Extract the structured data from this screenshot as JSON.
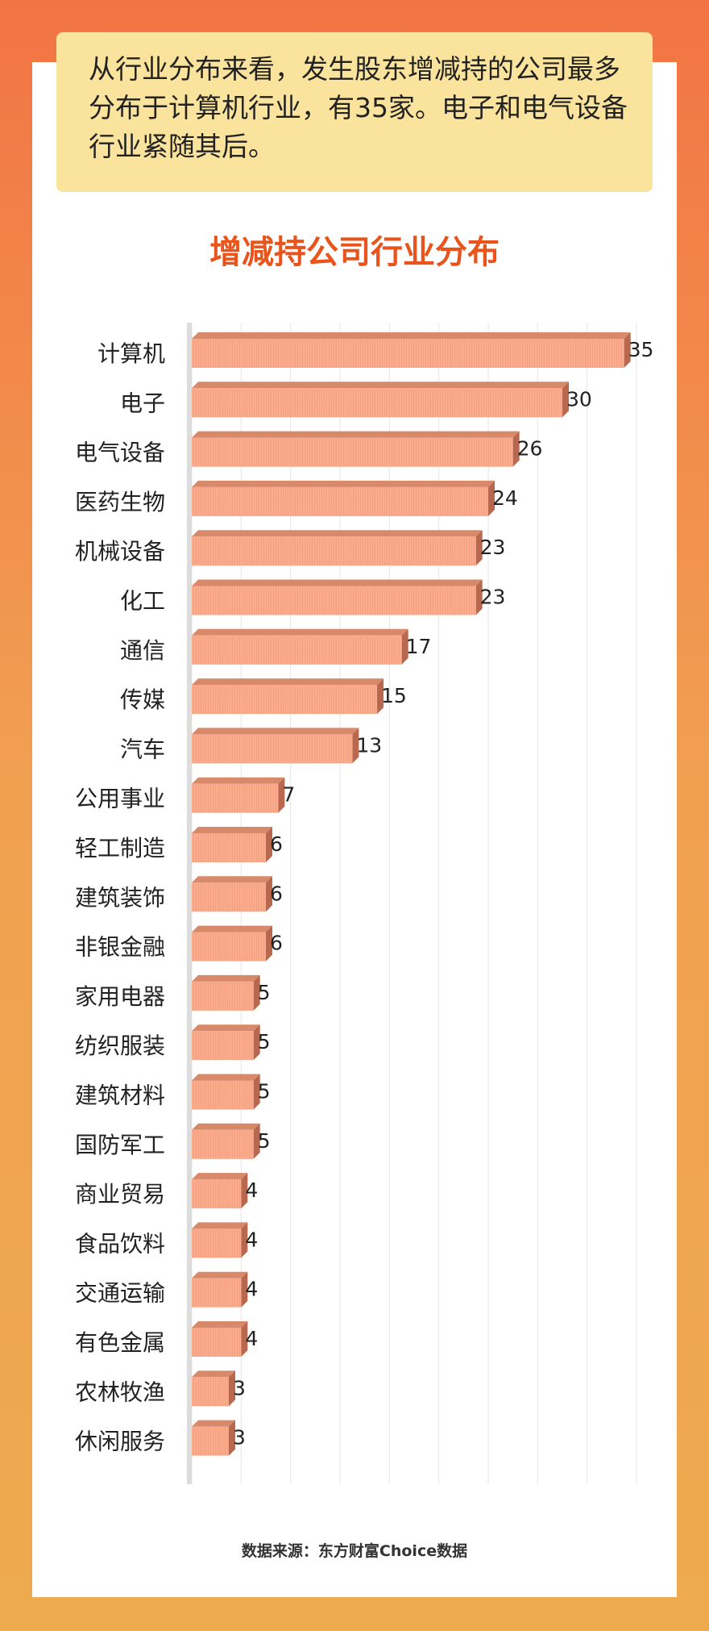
{
  "note": {
    "text": "从行业分布来看，发生股东增减持的公司最多分布于计算机行业，有35家。电子和电气设备行业紧随其后。"
  },
  "colors": {
    "bar_front": "#f9ad8c",
    "bar_top": "#d8896a",
    "bar_side": "#b8684e",
    "title": "#e8541b",
    "accent_bg": "#fae39c"
  },
  "chart_data": {
    "type": "bar",
    "orientation": "horizontal",
    "title": "增减持公司行业分布",
    "categories": [
      "计算机",
      "电子",
      "电气设备",
      "医药生物",
      "机械设备",
      "化工",
      "通信",
      "传媒",
      "汽车",
      "公用事业",
      "轻工制造",
      "建筑装饰",
      "非银金融",
      "家用电器",
      "纺织服装",
      "建筑材料",
      "国防军工",
      "商业贸易",
      "食品饮料",
      "交通运输",
      "有色金属",
      "农林牧渔",
      "休闲服务"
    ],
    "values": [
      35,
      30,
      26,
      24,
      23,
      23,
      17,
      15,
      13,
      7,
      6,
      6,
      6,
      5,
      5,
      5,
      5,
      4,
      4,
      4,
      4,
      3,
      3
    ],
    "xlim": [
      0,
      36
    ],
    "grid": true,
    "data_labels": true
  },
  "footer": {
    "source": "数据来源：东方财富Choice数据"
  }
}
